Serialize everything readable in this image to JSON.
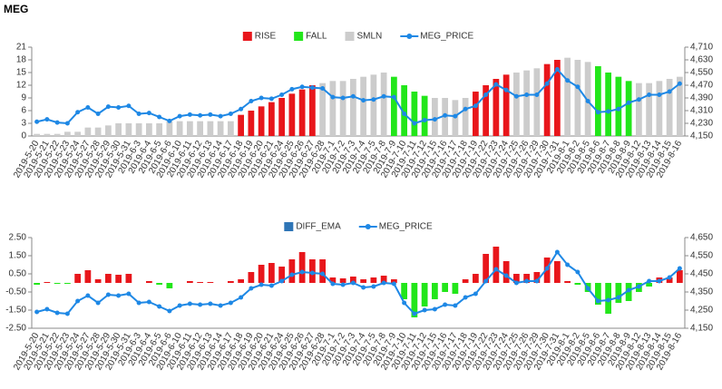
{
  "chart_data": [
    {
      "type": "bar",
      "title": "MEG",
      "categories": [
        "2019-5-20",
        "2019-5-21",
        "2019-5-22",
        "2019-5-23",
        "2019-5-24",
        "2019-5-27",
        "2019-5-28",
        "2019-5-29",
        "2019-5-30",
        "2019-5-31",
        "2019-6-3",
        "2019-6-4",
        "2019-6-5",
        "2019-6-6",
        "2019-6-10",
        "2019-6-11",
        "2019-6-12",
        "2019-6-13",
        "2019-6-14",
        "2019-6-17",
        "2019-6-18",
        "2019-6-19",
        "2019-6-20",
        "2019-6-21",
        "2019-6-24",
        "2019-6-25",
        "2019-6-26",
        "2019-6-27",
        "2019-6-28",
        "2019-7-1",
        "2019-7-2",
        "2019-7-3",
        "2019-7-4",
        "2019-7-5",
        "2019-7-8",
        "2019-7-9",
        "2019-7-10",
        "2019-7-11",
        "2019-7-12",
        "2019-7-15",
        "2019-7-16",
        "2019-7-17",
        "2019-7-18",
        "2019-7-19",
        "2019-7-22",
        "2019-7-23",
        "2019-7-24",
        "2019-7-25",
        "2019-7-26",
        "2019-7-29",
        "2019-7-30",
        "2019-7-31",
        "2019-8-1",
        "2019-8-2",
        "2019-8-5",
        "2019-8-6",
        "2019-8-7",
        "2019-8-8",
        "2019-8-9",
        "2019-8-12",
        "2019-8-13",
        "2019-8-14",
        "2019-8-15",
        "2019-8-16"
      ],
      "series": [
        {
          "name": "RISE",
          "color": "#e8161b",
          "values": [
            null,
            null,
            null,
            null,
            null,
            null,
            null,
            null,
            null,
            null,
            null,
            null,
            null,
            null,
            null,
            null,
            null,
            null,
            null,
            null,
            5,
            6,
            7,
            8,
            9,
            10,
            11,
            12,
            null,
            null,
            null,
            null,
            null,
            null,
            null,
            null,
            null,
            null,
            null,
            null,
            null,
            null,
            null,
            10.5,
            12,
            13.5,
            14.5,
            null,
            null,
            null,
            17,
            18,
            null,
            null,
            null,
            null,
            null,
            null,
            null,
            null,
            null,
            null,
            null,
            null
          ]
        },
        {
          "name": "FALL",
          "color": "#22e61a",
          "values": [
            null,
            null,
            null,
            null,
            null,
            null,
            null,
            null,
            null,
            null,
            null,
            null,
            null,
            null,
            null,
            null,
            null,
            null,
            null,
            null,
            null,
            null,
            null,
            null,
            null,
            null,
            null,
            null,
            null,
            null,
            null,
            null,
            null,
            null,
            null,
            14,
            12,
            10.5,
            9.5,
            null,
            null,
            null,
            null,
            null,
            null,
            null,
            null,
            null,
            null,
            null,
            null,
            null,
            null,
            null,
            null,
            16.5,
            15,
            14,
            13,
            null,
            null,
            null,
            null,
            null
          ]
        },
        {
          "name": "SMLN",
          "color": "#cccccc",
          "values": [
            0.5,
            0.5,
            0.5,
            1,
            1,
            2,
            2,
            2.5,
            3,
            3,
            3,
            3,
            3,
            3.5,
            3.5,
            3.5,
            3.5,
            3.5,
            3.5,
            3.5,
            null,
            null,
            null,
            null,
            null,
            null,
            null,
            null,
            12.5,
            13,
            13,
            13.5,
            14,
            14.5,
            15,
            null,
            null,
            null,
            null,
            9,
            9,
            8.5,
            9,
            null,
            null,
            null,
            null,
            15,
            15.5,
            16,
            null,
            null,
            18.5,
            18,
            17.5,
            null,
            null,
            null,
            null,
            12.5,
            12.5,
            13,
            13.5,
            14
          ]
        },
        {
          "name": "MEG_PRICE",
          "type": "line",
          "axis": "y2",
          "color": "#1e88e5",
          "values": [
            4240,
            4255,
            4235,
            4230,
            4300,
            4330,
            4290,
            4335,
            4330,
            4340,
            4290,
            4295,
            4270,
            4245,
            4275,
            4285,
            4280,
            4285,
            4275,
            4290,
            4320,
            4370,
            4390,
            4385,
            4410,
            4445,
            4460,
            4455,
            4450,
            4395,
            4390,
            4400,
            4375,
            4380,
            4400,
            4395,
            4290,
            4230,
            4250,
            4255,
            4280,
            4275,
            4320,
            4340,
            4410,
            4475,
            4440,
            4400,
            4410,
            4410,
            4480,
            4570,
            4500,
            4460,
            4370,
            4300,
            4305,
            4320,
            4360,
            4380,
            4410,
            4410,
            4430,
            4480
          ]
        }
      ],
      "ylim": [
        0,
        21
      ],
      "yticks": [
        0,
        3,
        6,
        9,
        12,
        15,
        18,
        21
      ],
      "y2lim": [
        4150,
        4710
      ],
      "y2ticks": [
        {
          "value": 4150,
          "label": "4,150"
        },
        {
          "value": 4230,
          "label": "4,230"
        },
        {
          "value": 4310,
          "label": "4,310"
        },
        {
          "value": 4390,
          "label": "4,390"
        },
        {
          "value": 4470,
          "label": "4,470"
        },
        {
          "value": 4550,
          "label": "4,550"
        },
        {
          "value": 4630,
          "label": "4,630"
        },
        {
          "value": 4710,
          "label": "4,710"
        }
      ],
      "grid": false
    },
    {
      "type": "bar",
      "categories": [
        "2019-5-20",
        "2019-5-21",
        "2019-5-22",
        "2019-5-23",
        "2019-5-24",
        "2019-5-27",
        "2019-5-28",
        "2019-5-29",
        "2019-5-30",
        "2019-5-31",
        "2019-6-3",
        "2019-6-4",
        "2019-6-5",
        "2019-6-6",
        "2019-6-10",
        "2019-6-11",
        "2019-6-12",
        "2019-6-13",
        "2019-6-14",
        "2019-6-17",
        "2019-6-18",
        "2019-6-19",
        "2019-6-20",
        "2019-6-21",
        "2019-6-24",
        "2019-6-25",
        "2019-6-26",
        "2019-6-27",
        "2019-6-28",
        "2019-7-1",
        "2019-7-2",
        "2019-7-3",
        "2019-7-4",
        "2019-7-5",
        "2019-7-8",
        "2019-7-9",
        "2019-7-10",
        "2019-7-11",
        "2019-7-12",
        "2019-7-15",
        "2019-7-16",
        "2019-7-17",
        "2019-7-18",
        "2019-7-19",
        "2019-7-22",
        "2019-7-23",
        "2019-7-24",
        "2019-7-25",
        "2019-7-26",
        "2019-7-29",
        "2019-7-30",
        "2019-7-31",
        "2019-8-1",
        "2019-8-2",
        "2019-8-5",
        "2019-8-6",
        "2019-8-7",
        "2019-8-8",
        "2019-8-9",
        "2019-8-12",
        "2019-8-13",
        "2019-8-14",
        "2019-8-15",
        "2019-8-16"
      ],
      "series": [
        {
          "name": "DIFF_EMA",
          "color": "#2e75b6",
          "positive_color": "#e8161b",
          "negative_color": "#22e61a",
          "values": [
            -0.1,
            0.05,
            -0.05,
            -0.05,
            0.5,
            0.7,
            0.2,
            0.5,
            0.45,
            0.5,
            0,
            0.1,
            -0.1,
            -0.3,
            0,
            0.1,
            0.05,
            0.05,
            0,
            0.1,
            0.2,
            0.6,
            1.0,
            1.1,
            0.9,
            1.3,
            1.7,
            1.3,
            1.3,
            0.3,
            0.25,
            0.35,
            0.2,
            0.3,
            0.4,
            0.2,
            -0.9,
            -1.9,
            -1.3,
            -0.9,
            -0.5,
            -0.6,
            0.2,
            0.5,
            1.6,
            2.0,
            1.2,
            0.5,
            0.5,
            0.6,
            1.4,
            1.2,
            0.1,
            -0.1,
            -0.5,
            -1.2,
            -1.7,
            -1.1,
            -1.0,
            -0.5,
            -0.2,
            0.3,
            0.3,
            0.7
          ]
        },
        {
          "name": "MEG_PRICE",
          "type": "line",
          "axis": "y2",
          "color": "#1e88e5",
          "values": [
            4240,
            4255,
            4235,
            4230,
            4300,
            4330,
            4290,
            4335,
            4330,
            4340,
            4290,
            4295,
            4270,
            4245,
            4275,
            4285,
            4280,
            4285,
            4275,
            4290,
            4320,
            4370,
            4390,
            4385,
            4410,
            4445,
            4460,
            4455,
            4450,
            4395,
            4390,
            4400,
            4375,
            4380,
            4400,
            4395,
            4290,
            4230,
            4250,
            4255,
            4280,
            4275,
            4320,
            4340,
            4410,
            4475,
            4440,
            4400,
            4410,
            4410,
            4480,
            4570,
            4500,
            4460,
            4370,
            4300,
            4305,
            4320,
            4360,
            4380,
            4410,
            4410,
            4430,
            4480
          ]
        }
      ],
      "ylim": [
        -2.5,
        2.5
      ],
      "yticks": [
        {
          "value": -2.5,
          "label": "-2.50"
        },
        {
          "value": -1.5,
          "label": "-1.50"
        },
        {
          "value": -0.5,
          "label": "-0.50"
        },
        {
          "value": 0.5,
          "label": "0.50"
        },
        {
          "value": 1.5,
          "label": "1.50"
        },
        {
          "value": 2.5,
          "label": "2.50"
        }
      ],
      "y2lim": [
        4150,
        4650
      ],
      "y2ticks": [
        {
          "value": 4150,
          "label": "4,150"
        },
        {
          "value": 4250,
          "label": "4,250"
        },
        {
          "value": 4350,
          "label": "4,350"
        },
        {
          "value": 4450,
          "label": "4,450"
        },
        {
          "value": 4550,
          "label": "4,550"
        },
        {
          "value": 4650,
          "label": "4,650"
        }
      ],
      "grid": false
    }
  ]
}
